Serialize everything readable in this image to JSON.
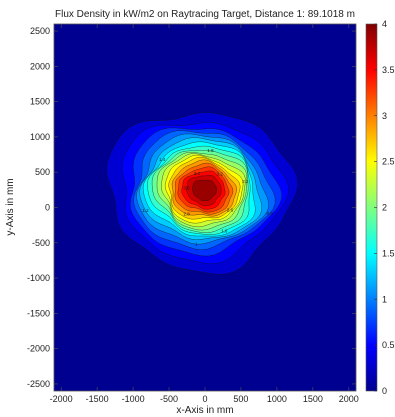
{
  "chart_data": {
    "type": "heatmap",
    "title": "Flux Density in kW/m2 on Raytracing Target, Distance 1: 89.1018 m",
    "xlabel": "x-Axis in mm",
    "ylabel": "y-Axis in mm",
    "xlim": [
      -2100,
      2100
    ],
    "ylim": [
      -2600,
      2600
    ],
    "x_ticks": [
      -2000,
      -1500,
      -1000,
      -500,
      0,
      500,
      1000,
      1500,
      2000
    ],
    "y_ticks": [
      2500,
      2000,
      1500,
      1000,
      500,
      0,
      -500,
      -1000,
      -1500,
      -2000,
      -2500
    ],
    "colorbar": {
      "range": [
        0,
        4
      ],
      "ticks": [
        4,
        3.5,
        3,
        2.5,
        2,
        1.5,
        1,
        0.5,
        0
      ],
      "colormap": "jet"
    },
    "peak": {
      "x": 0,
      "y": 250,
      "value": 4.0
    },
    "contour_levels": [
      0.2,
      0.4,
      0.6,
      0.8,
      1.0,
      1.2,
      1.4,
      1.6,
      1.8,
      2.0,
      2.2,
      2.4,
      2.6,
      2.8,
      3.0,
      3.2,
      3.4,
      3.6,
      3.8
    ],
    "contour_labels": [
      "2.2",
      "1.8",
      "1.4",
      "1.2",
      "1",
      "2.6",
      "3.2",
      "3.4",
      "3.6",
      "2.8",
      "1.6",
      "0.8"
    ],
    "grid": false
  },
  "colors": {
    "background_low": "#000090",
    "peak": "#800000"
  }
}
